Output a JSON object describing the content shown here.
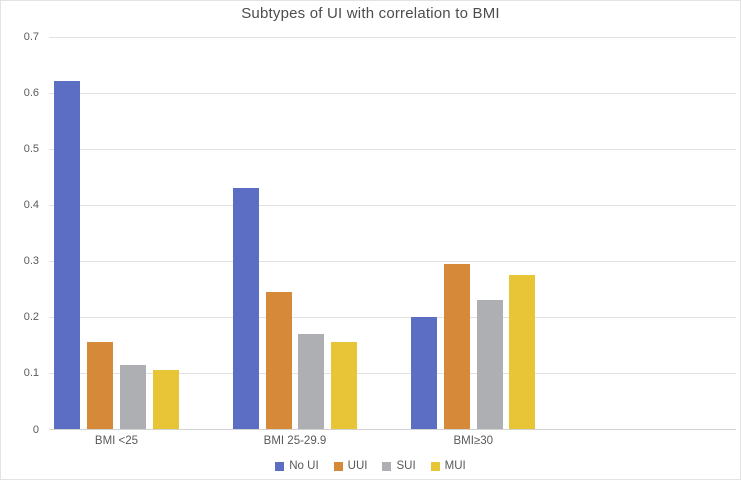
{
  "title": "Subtypes of UI with correlation to BMI",
  "chart_data": {
    "type": "bar",
    "categories": [
      "BMI <25",
      "BMI 25-29.9",
      "BMI≥30"
    ],
    "series": [
      {
        "name": "No UI",
        "color": "#5C6EC4",
        "values": [
          0.62,
          0.43,
          0.2
        ]
      },
      {
        "name": "UUI",
        "color": "#D7893A",
        "values": [
          0.155,
          0.245,
          0.295
        ]
      },
      {
        "name": "SUI",
        "color": "#AEAFB3",
        "values": [
          0.115,
          0.17,
          0.23
        ]
      },
      {
        "name": "MUI",
        "color": "#E8C537",
        "values": [
          0.105,
          0.155,
          0.275
        ]
      }
    ],
    "title": "Subtypes of UI with correlation to BMI",
    "xlabel": "",
    "ylabel": "",
    "ylim": [
      0,
      0.7
    ],
    "yticks": [
      0,
      0.1,
      0.2,
      0.3,
      0.4,
      0.5,
      0.6,
      0.7
    ],
    "grid": true,
    "legend_position": "bottom"
  }
}
